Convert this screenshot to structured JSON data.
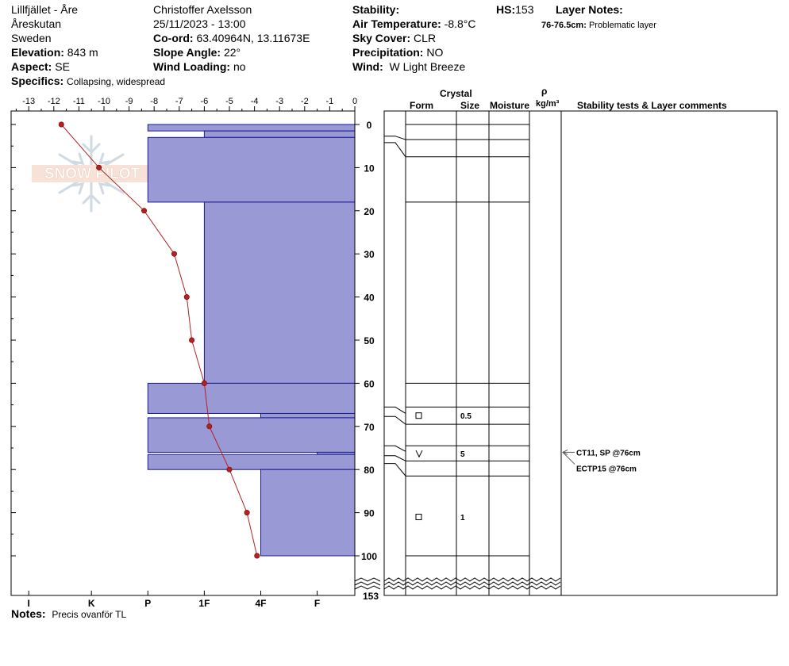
{
  "header": {
    "location": "Lillfjället - Åre",
    "area": "Åreskutan",
    "country": "Sweden",
    "elevation_label": "Elevation:",
    "elevation_value": "843 m",
    "aspect_label": "Aspect:",
    "aspect_value": "SE",
    "specifics_label": "Specifics:",
    "specifics_value": "Collapsing, widespread",
    "observer": "Christoffer Axelsson",
    "datetime": "25/11/2023 - 13:00",
    "coord_label": "Co-ord:",
    "coord_value": "63.40964N, 13.11673E",
    "slope_label": "Slope Angle:",
    "slope_value": "22°",
    "windload_label": "Wind Loading:",
    "windload_value": "no",
    "stability_label": "Stability:",
    "stability_value": "",
    "airtemp_label": "Air Temperature:",
    "airtemp_value": "-8.8°C",
    "skycover_label": "Sky Cover:",
    "skycover_value": "CLR",
    "precip_label": "Precipitation:",
    "precip_value": "NO",
    "wind_label": "Wind:",
    "wind_value": "W Light Breeze",
    "hs_label": "HS:",
    "hs_value": "153",
    "layer_notes_label": "Layer Notes:",
    "layer_notes_depth": "76-76.5cm:",
    "layer_notes_text": "Problematic layer"
  },
  "notes": {
    "label": "Notes:",
    "text": "Precis ovanför TL"
  },
  "watermark": "SNOW PILOT",
  "table_headers": {
    "crystal": "Crystal",
    "form": "Form",
    "size": "Size",
    "moisture": "Moisture",
    "rho": "ρ",
    "density_unit": "kg/m³",
    "comments": "Stability tests & Layer comments"
  },
  "colors": {
    "hardness_fill": "#9999d6",
    "hardness_stroke": "#1a1a8c",
    "temp_line": "#b22222",
    "temp_point": "#b22222"
  },
  "chart_data": {
    "type": "snow-profile",
    "temperature_axis": {
      "ticks": [
        "-13",
        "-12",
        "-11",
        "-10",
        "-9",
        "-8",
        "-7",
        "-6",
        "-5",
        "-4",
        "-3",
        "-2",
        "-1",
        "0"
      ],
      "range": [
        -14,
        0
      ],
      "unit": "°C"
    },
    "depth_axis": {
      "ticks": [
        "0",
        "10",
        "20",
        "30",
        "40",
        "50",
        "60",
        "70",
        "80",
        "90",
        "100"
      ],
      "range": [
        0,
        100
      ],
      "bottom_label": "153",
      "unit": "cm",
      "inverted": true
    },
    "hardness_axis": {
      "labels": [
        "I",
        "K",
        "P",
        "1F",
        "4F",
        "F"
      ],
      "values": [
        -13,
        -10.5,
        -8.25,
        -6.0,
        -3.75,
        -1.5
      ]
    },
    "hardness_layers": [
      {
        "top": 0,
        "bottom": 1.5,
        "hardness": "P"
      },
      {
        "top": 1.5,
        "bottom": 3,
        "hardness": "1F"
      },
      {
        "top": 3,
        "bottom": 18,
        "hardness": "P"
      },
      {
        "top": 18,
        "bottom": 60,
        "hardness": "1F"
      },
      {
        "top": 60,
        "bottom": 67,
        "hardness": "P"
      },
      {
        "top": 67,
        "bottom": 68,
        "hardness": "4F"
      },
      {
        "top": 68,
        "bottom": 76,
        "hardness": "P"
      },
      {
        "top": 76,
        "bottom": 76.5,
        "hardness": "F+"
      },
      {
        "top": 76.5,
        "bottom": 80,
        "hardness": "P"
      },
      {
        "top": 80,
        "bottom": 100,
        "hardness": "4F"
      }
    ],
    "temperature_profile": [
      {
        "depth": 0,
        "temp": -11.7
      },
      {
        "depth": 10,
        "temp": -10.2
      },
      {
        "depth": 20,
        "temp": -8.4
      },
      {
        "depth": 30,
        "temp": -7.2
      },
      {
        "depth": 40,
        "temp": -6.7
      },
      {
        "depth": 50,
        "temp": -6.5
      },
      {
        "depth": 60,
        "temp": -6.0
      },
      {
        "depth": 70,
        "temp": -5.8
      },
      {
        "depth": 80,
        "temp": -5.0
      },
      {
        "depth": 90,
        "temp": -4.3
      },
      {
        "depth": 100,
        "temp": -3.9
      }
    ],
    "layer_lines": [
      0,
      3.5,
      7.5,
      18,
      60,
      65.5,
      69.5,
      74.5,
      78,
      81.5,
      100
    ],
    "crystals": [
      {
        "depth": 67.5,
        "form": "□",
        "size": "0.5"
      },
      {
        "depth": 76.3,
        "form": "V",
        "size": "5"
      },
      {
        "depth": 91,
        "form": "□",
        "size": "1"
      }
    ],
    "stability_tests": [
      {
        "depth": 76,
        "text": "CT11, SP @76cm"
      },
      {
        "depth": 76,
        "text": "ECTP15 @76cm"
      }
    ]
  }
}
